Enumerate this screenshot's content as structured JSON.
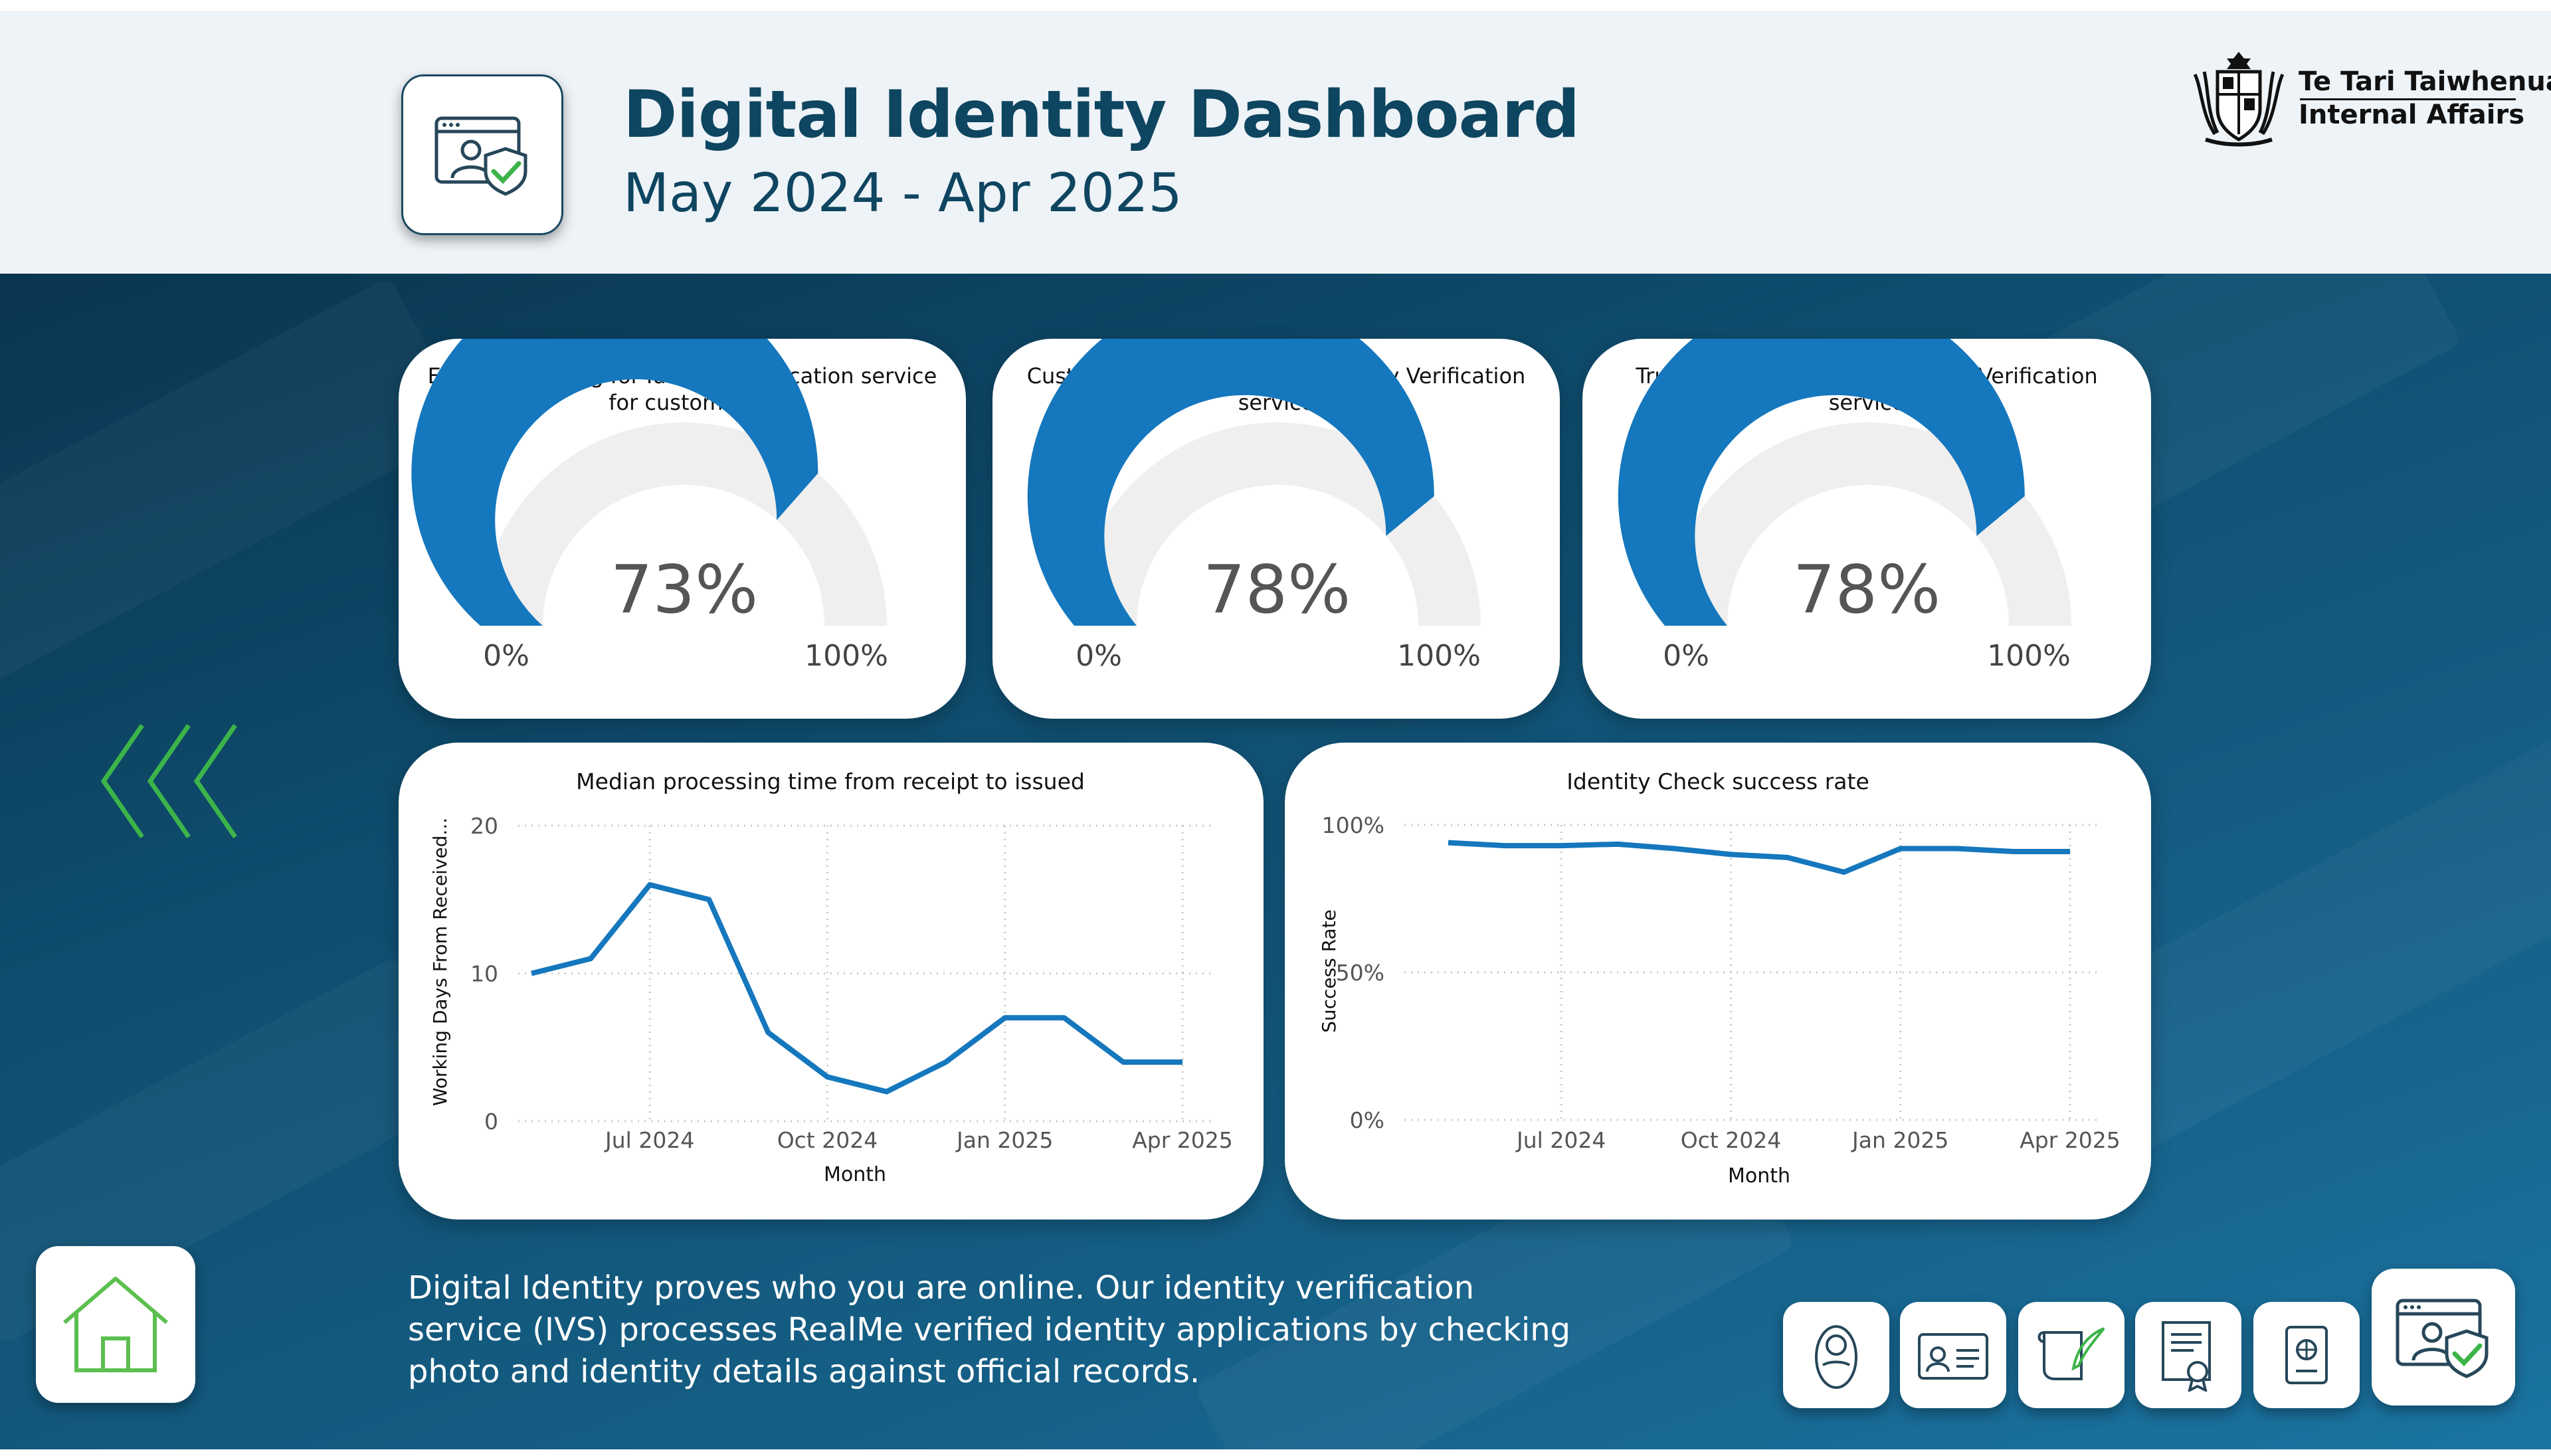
{
  "header": {
    "title": "Digital Identity Dashboard",
    "subtitle": "May 2024 - Apr 2025",
    "org_name_line1": "Te Tari Taiwhenua",
    "org_name_line2": "Internal Affairs",
    "icon": "identity-verification-icon"
  },
  "colors": {
    "header_bg": "#eef3f7",
    "title": "#0e4560",
    "accent_blue": "#1577bd",
    "gauge_track": "#efefef",
    "chevron_green": "#3cb44a",
    "home_green": "#5cbf4f"
  },
  "gauges": [
    {
      "title_line1": "Ease of applying for Identity Verification service",
      "title_line2": "for customers",
      "value": 73,
      "value_label": "73%",
      "min_label": "0%",
      "max_label": "100%"
    },
    {
      "title_line1": "Customer satisfaction with Identity Verification",
      "title_line2": "service",
      "value": 78,
      "value_label": "78%",
      "min_label": "0%",
      "max_label": "100%"
    },
    {
      "title_line1": "Trust and confidence in Identity Verification",
      "title_line2": "service",
      "value": 78,
      "value_label": "78%",
      "min_label": "0%",
      "max_label": "100%"
    }
  ],
  "chart_data": [
    {
      "type": "line",
      "title": "Median processing time from receipt to issued",
      "xlabel": "Month",
      "ylabel": "Working Days From Received...",
      "x": [
        "May 2024",
        "Jun 2024",
        "Jul 2024",
        "Aug 2024",
        "Sep 2024",
        "Oct 2024",
        "Nov 2024",
        "Dec 2024",
        "Jan 2025",
        "Feb 2025",
        "Mar 2025",
        "Apr 2025"
      ],
      "values": [
        10,
        11,
        16,
        15,
        6,
        3,
        2,
        4,
        7,
        7,
        4,
        4
      ],
      "x_ticks": [
        "Jul 2024",
        "Oct 2024",
        "Jan 2025",
        "Apr 2025"
      ],
      "y_ticks": [
        "0",
        "10",
        "20"
      ],
      "ylim": [
        0,
        20
      ],
      "grid": true
    },
    {
      "type": "line",
      "title": "Identity Check success rate",
      "xlabel": "Month",
      "ylabel": "Success Rate",
      "x": [
        "May 2024",
        "Jun 2024",
        "Jul 2024",
        "Aug 2024",
        "Sep 2024",
        "Oct 2024",
        "Nov 2024",
        "Dec 2024",
        "Jan 2025",
        "Feb 2025",
        "Mar 2025",
        "Apr 2025"
      ],
      "values": [
        94,
        93,
        93,
        93.5,
        92,
        90,
        89,
        84,
        92,
        92,
        91,
        91
      ],
      "x_ticks": [
        "Jul 2024",
        "Oct 2024",
        "Jan 2025",
        "Apr 2025"
      ],
      "y_ticks": [
        "0%",
        "50%",
        "100%"
      ],
      "ylim": [
        0,
        100
      ],
      "grid": true
    }
  ],
  "description": "Digital Identity proves who you are online. Our identity verification service (IVS) processes RealMe verified identity applications by checking photo and identity details against official records.",
  "nav": {
    "back_icon": "triple-chevron-left-icon",
    "home_icon": "home-icon",
    "tiles": [
      {
        "name": "baby-icon"
      },
      {
        "name": "id-card-icon"
      },
      {
        "name": "scroll-quill-icon"
      },
      {
        "name": "certificate-icon"
      },
      {
        "name": "passport-icon"
      },
      {
        "name": "identity-verification-icon"
      }
    ]
  }
}
